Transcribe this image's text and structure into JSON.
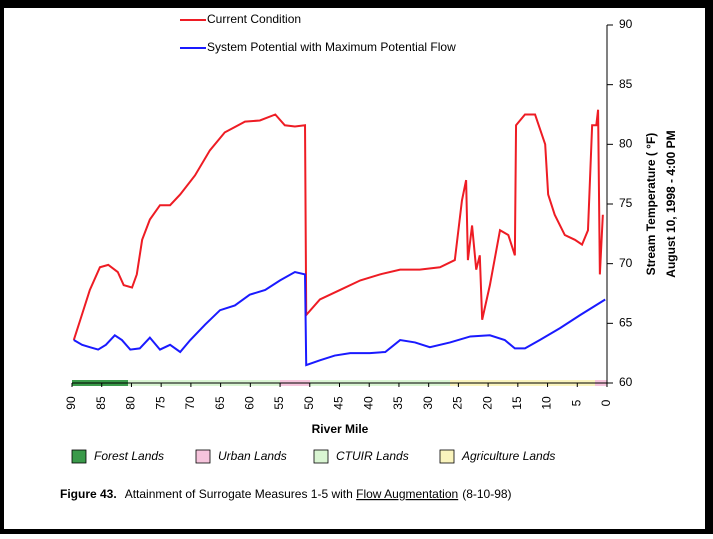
{
  "chart_data": {
    "type": "line",
    "y_label": "Stream Temperature ( °F)",
    "y_label2": "August 10, 1998 - 4:00 PM",
    "x_label": "River Mile",
    "xlim": [
      90,
      0
    ],
    "xticks": [
      90,
      85,
      80,
      75,
      70,
      65,
      60,
      55,
      50,
      45,
      40,
      35,
      30,
      25,
      20,
      15,
      10,
      5,
      0
    ],
    "ylim": [
      60,
      90
    ],
    "yticks": [
      60,
      65,
      70,
      75,
      80,
      85,
      90
    ],
    "series": [
      {
        "name": "Current Condition",
        "color": "#ee1c24",
        "x": [
          89.7,
          88.6,
          87,
          85.3,
          83.9,
          82.3,
          81.3,
          79.9,
          79.1,
          78.2,
          76.9,
          75.2,
          73.5,
          71.8,
          69.3,
          66.8,
          64.3,
          60.9,
          58.4,
          55.8,
          54.2,
          52.5,
          50.8,
          50.6,
          48.3,
          44.9,
          41.5,
          38.2,
          34.8,
          31.5,
          28.1,
          25.6,
          24.4,
          23.7,
          23.4,
          22.7,
          22.0,
          21.4,
          21.0,
          19.7,
          18.0,
          16.6,
          15.5,
          15.3,
          13.8,
          12.1,
          10.4,
          9.9,
          8.8,
          7.1,
          5.4,
          4.2,
          3.2,
          2.5,
          1.8,
          1.5,
          1.2,
          0.7
        ],
        "values": [
          63.6,
          65.3,
          67.8,
          69.7,
          69.9,
          69.3,
          68.2,
          68.0,
          69.1,
          72.0,
          73.7,
          74.9,
          74.9,
          75.8,
          77.4,
          79.5,
          81.0,
          81.9,
          82.0,
          82.5,
          81.6,
          81.5,
          81.6,
          65.7,
          67.0,
          67.8,
          68.6,
          69.1,
          69.5,
          69.5,
          69.7,
          70.3,
          75.3,
          77.0,
          70.3,
          73.2,
          69.5,
          70.7,
          65.3,
          68.2,
          72.8,
          72.4,
          70.7,
          81.6,
          82.5,
          82.5,
          80.0,
          75.8,
          74.1,
          72.4,
          72.0,
          71.6,
          72.8,
          81.6,
          81.6,
          82.9,
          69.1,
          74.1
        ]
      },
      {
        "name": "System Potential with Maximum Potential Flow",
        "color": "#1a1aff",
        "x": [
          89.7,
          88.3,
          87,
          85.6,
          84.3,
          82.8,
          81.6,
          80.2,
          78.6,
          76.9,
          75.2,
          73.5,
          71.8,
          70.1,
          67.6,
          65.1,
          62.6,
          60.1,
          57.5,
          55.0,
          52.5,
          50.8,
          50.6,
          48.3,
          45.8,
          43.2,
          39.9,
          37.3,
          34.8,
          32.3,
          29.8,
          26.4,
          23.0,
          19.7,
          17.2,
          15.5,
          13.8,
          11.3,
          7.9,
          4.5,
          0.3
        ],
        "values": [
          63.6,
          63.2,
          63.0,
          62.8,
          63.2,
          64.0,
          63.6,
          62.8,
          62.9,
          63.8,
          62.8,
          63.2,
          62.6,
          63.6,
          64.9,
          66.1,
          66.5,
          67.4,
          67.8,
          68.6,
          69.3,
          69.1,
          61.5,
          61.9,
          62.3,
          62.5,
          62.5,
          62.6,
          63.6,
          63.4,
          63.0,
          63.4,
          63.9,
          64.0,
          63.6,
          62.9,
          62.9,
          63.6,
          64.6,
          65.7,
          67.0
        ]
      }
    ],
    "land_legend": [
      {
        "label": "Forest Lands",
        "color": "#3a9a4a"
      },
      {
        "label": "Urban Lands",
        "color": "#f6c4dc"
      },
      {
        "label": "CTUIR Lands",
        "color": "#d9f5d2"
      },
      {
        "label": "Agriculture Lands",
        "color": "#faf4bd"
      }
    ],
    "caption": {
      "label": "Figure 43.",
      "text": "Attainment of Surrogate Measures 1-5 with ",
      "link": "Flow Augmentation",
      "suffix": "(8-10-98)"
    }
  }
}
